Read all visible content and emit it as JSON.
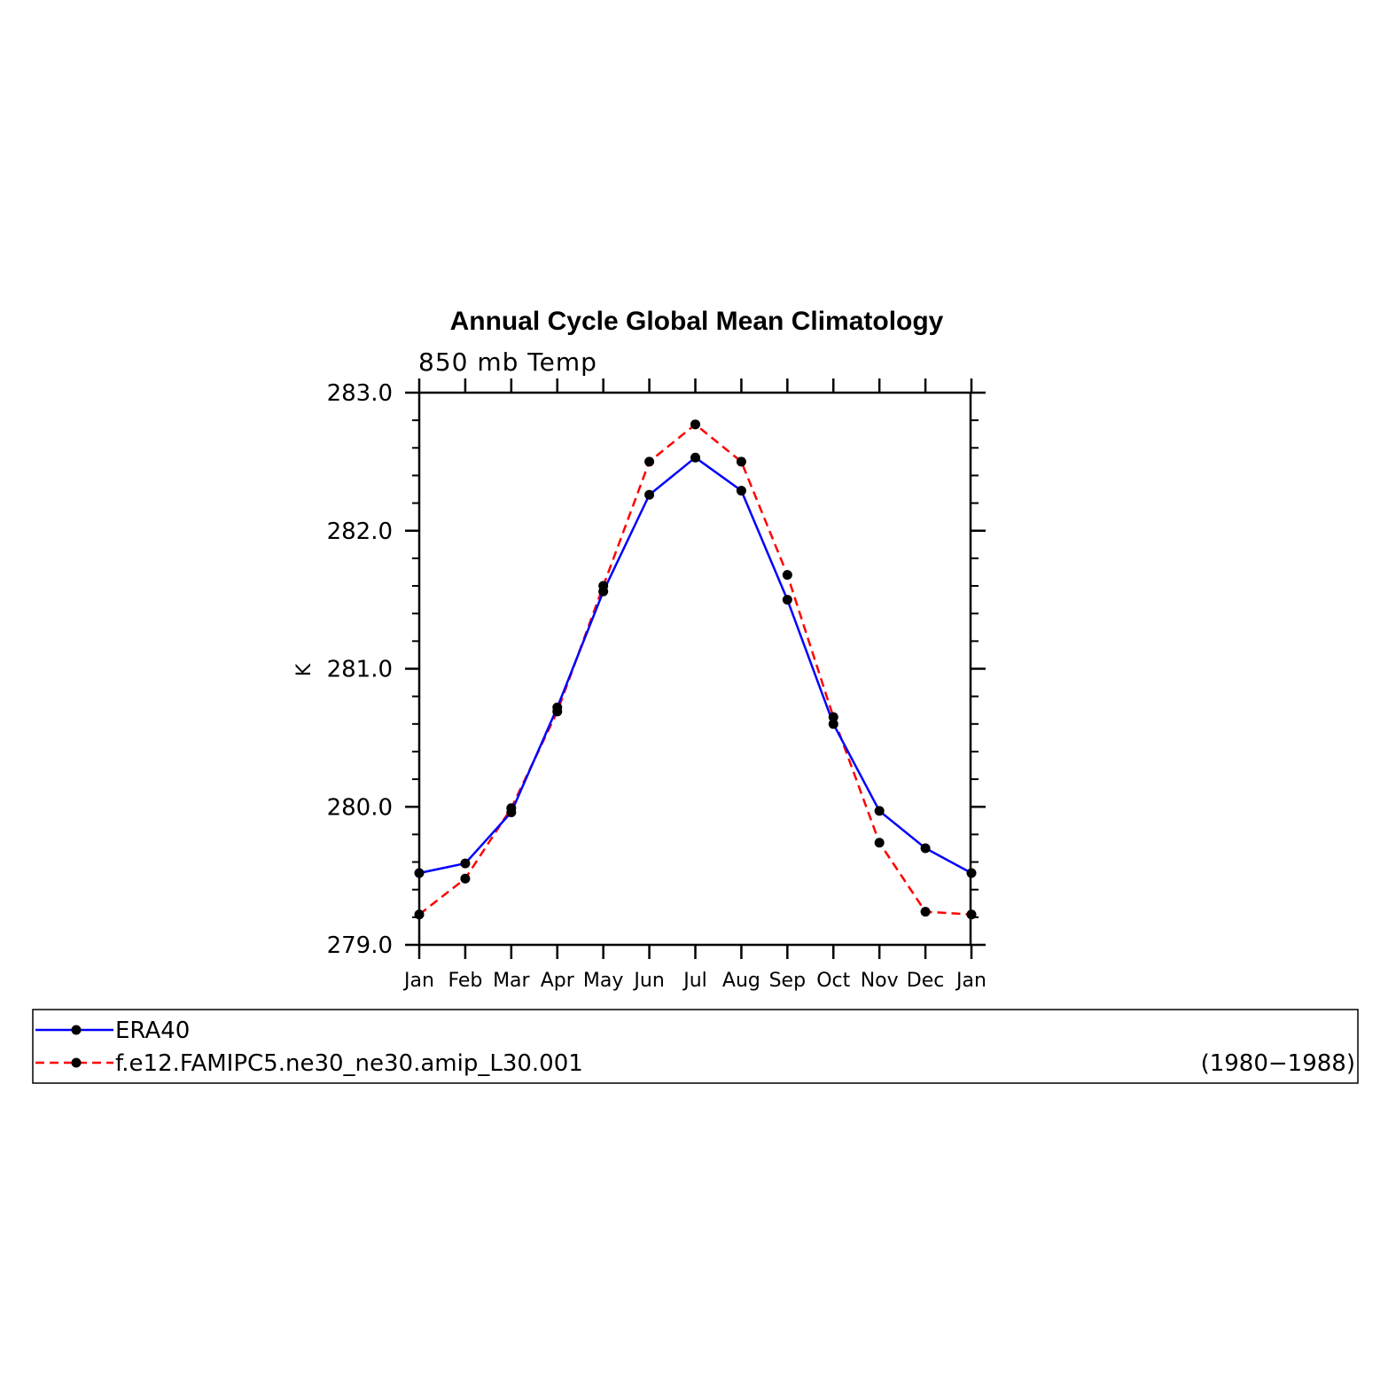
{
  "chart_data": {
    "type": "line",
    "title": "Annual Cycle Global Mean Climatology",
    "subtitle": "850 mb Temp",
    "ylabel": "K",
    "xlabel": "",
    "categories": [
      "Jan",
      "Feb",
      "Mar",
      "Apr",
      "May",
      "Jun",
      "Jul",
      "Aug",
      "Sep",
      "Oct",
      "Nov",
      "Dec",
      "Jan"
    ],
    "ylim": [
      279.0,
      283.0
    ],
    "yticks": [
      "279.0",
      "280.0",
      "281.0",
      "282.0",
      "283.0"
    ],
    "grid": false,
    "legend_placement": "bottom",
    "series": [
      {
        "name": "ERA40",
        "color": "#0000ff",
        "dash": "solid",
        "values": [
          279.52,
          279.59,
          279.96,
          280.72,
          281.56,
          282.26,
          282.53,
          282.29,
          281.5,
          280.6,
          279.97,
          279.7,
          279.52
        ]
      },
      {
        "name": "f.e12.FAMIPC5.ne30_ne30.amip_L30.001",
        "color": "#ff0000",
        "dash": "dashed",
        "values": [
          279.22,
          279.48,
          279.99,
          280.69,
          281.6,
          282.5,
          282.77,
          282.5,
          281.68,
          280.65,
          279.74,
          279.24,
          279.22
        ]
      }
    ],
    "legend_note": "(1980−1988)"
  }
}
